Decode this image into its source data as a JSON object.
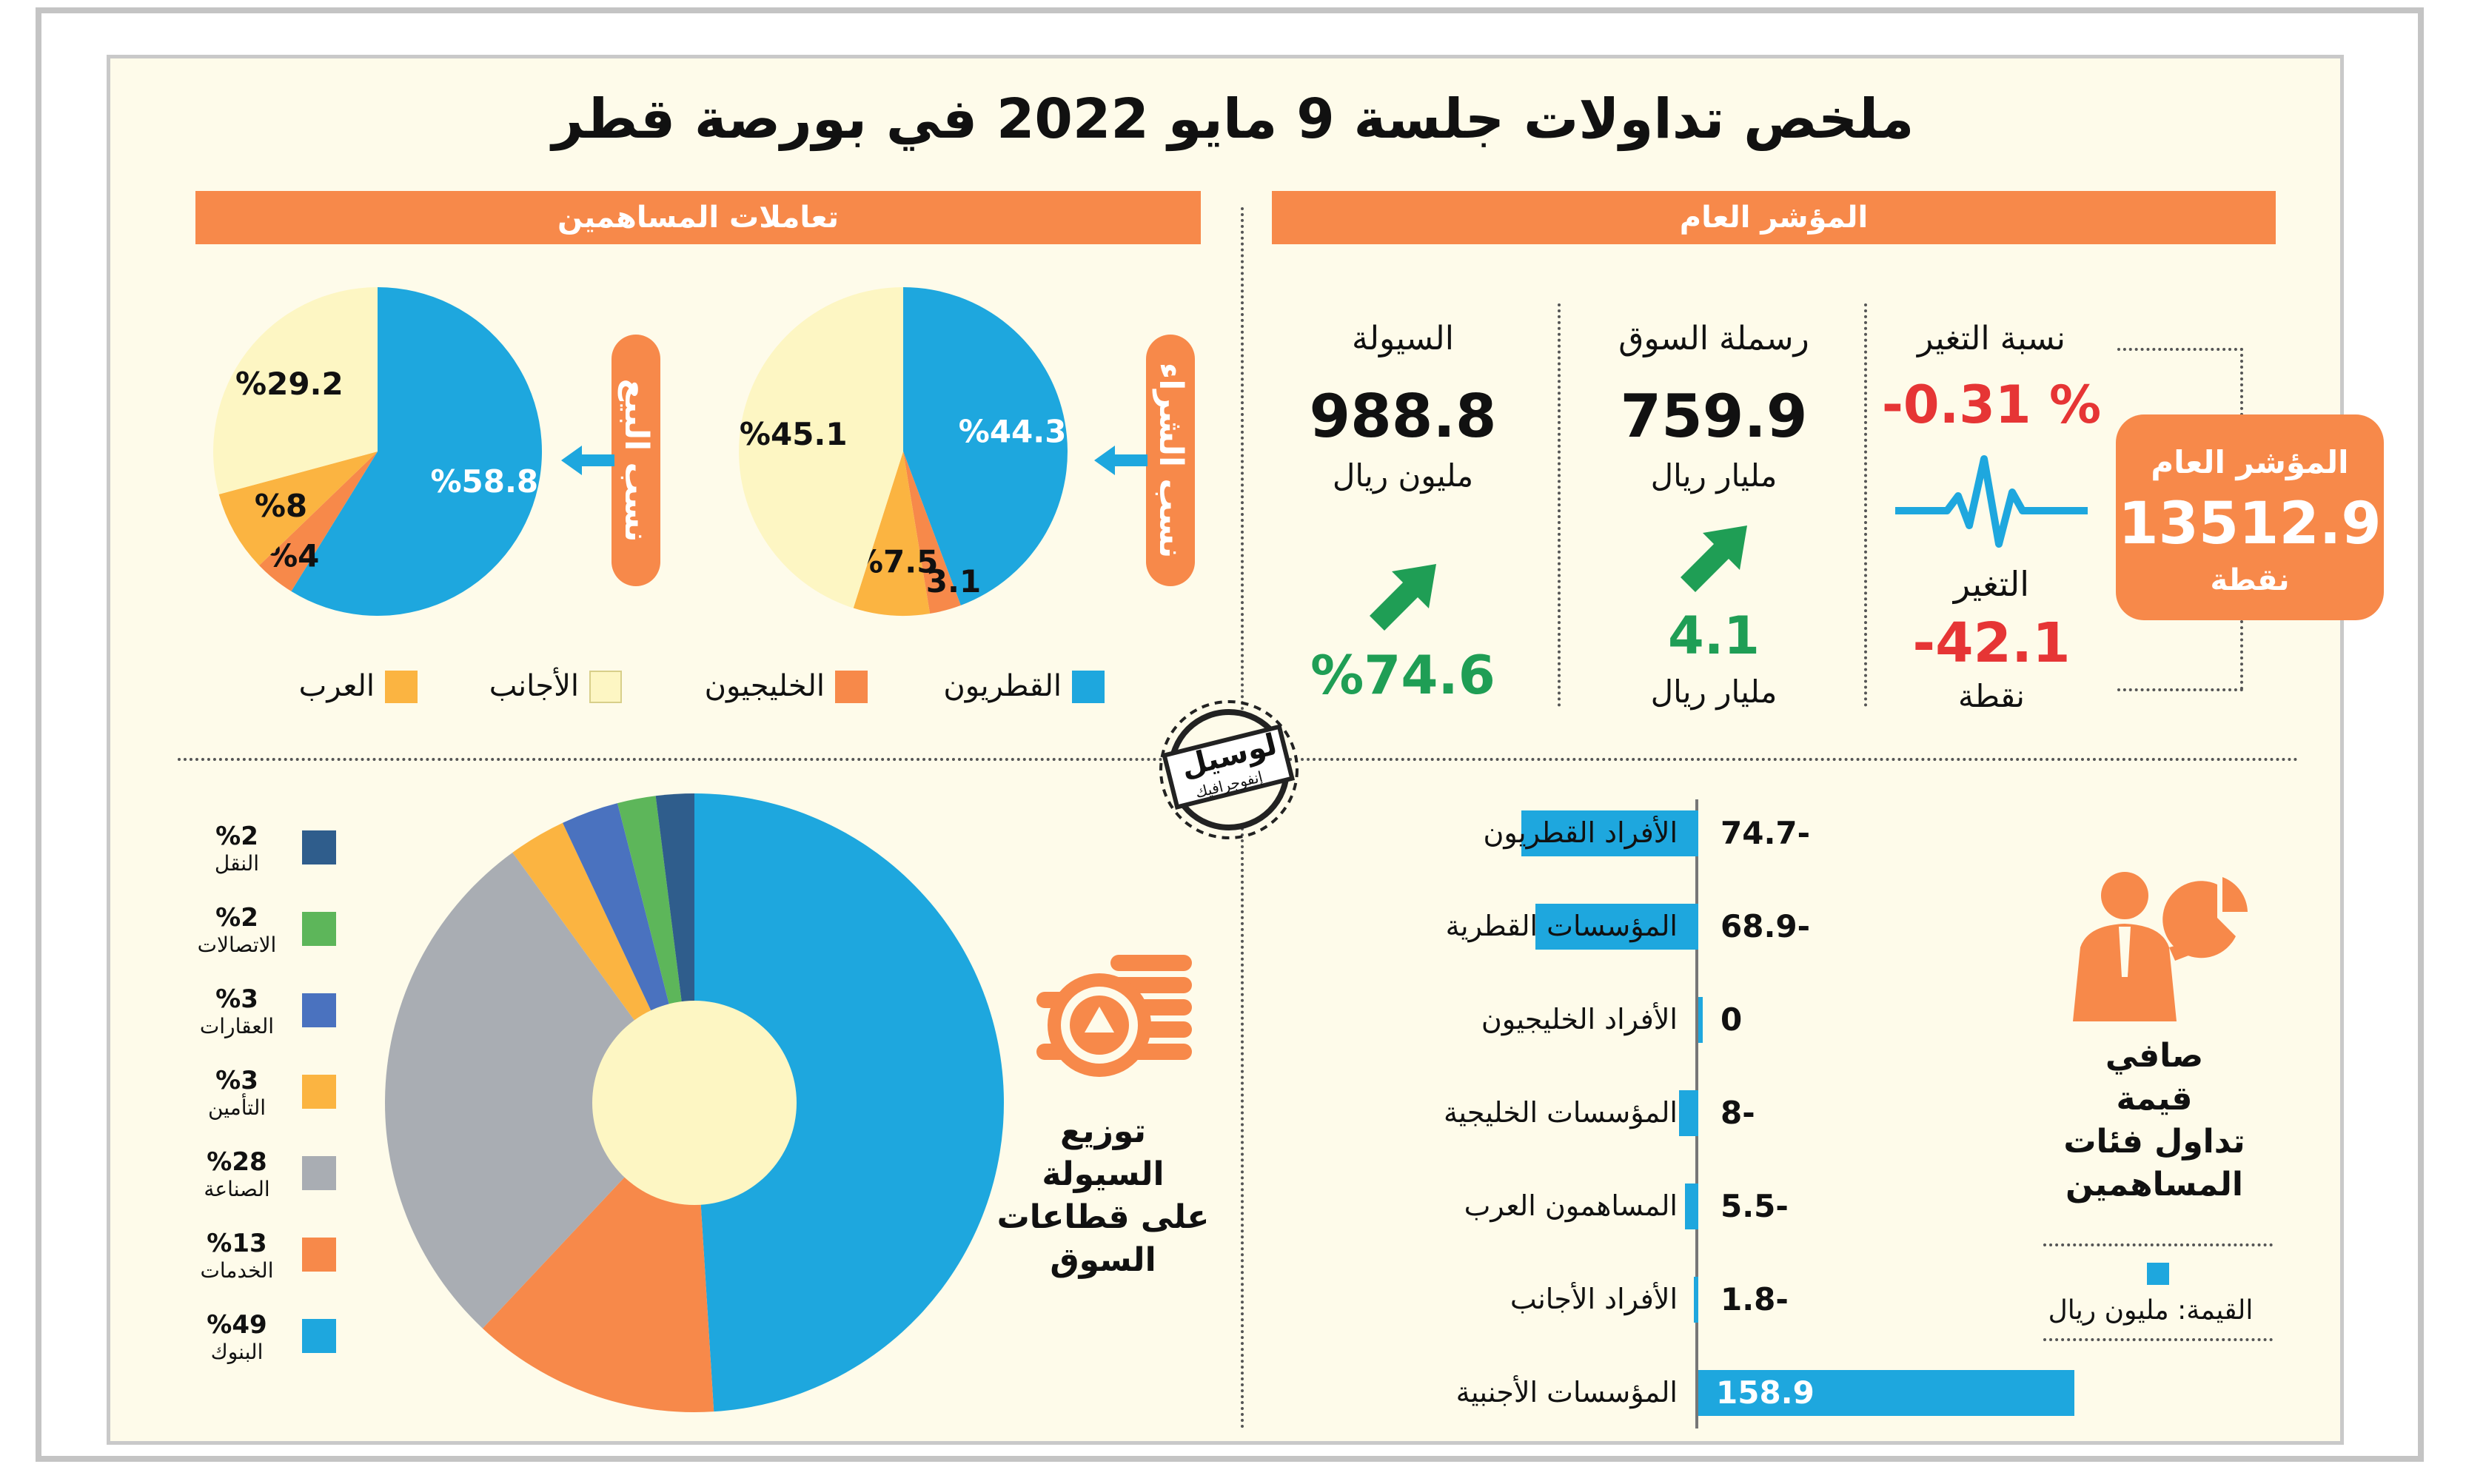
{
  "title": "ملخص تداولات جلسة 9 مايو 2022 في بورصة قطر",
  "sections": {
    "index": "المؤشر العام",
    "shareholders": "تعاملات المساهمين"
  },
  "index_box": {
    "label": "المؤشر العام",
    "value": "13512.9",
    "unit": "نقطة"
  },
  "change": {
    "pct_label": "نسبة التغير",
    "pct_value": "% 0.31-",
    "abs_label": "التغير",
    "abs_value": "42.1-",
    "abs_unit": "نقطة"
  },
  "market_cap": {
    "label": "رسملة السوق",
    "value": "759.9",
    "unit": "مليار ريال",
    "change_value": "4.1",
    "change_unit": "مليار ريال"
  },
  "liquidity": {
    "label": "السيولة",
    "value": "988.8",
    "unit": "مليون ريال",
    "change_value": "%74.6"
  },
  "pill_labels": {
    "buy": "نسب الشراء",
    "sell": "نسب البيع"
  },
  "sector_title": [
    "توزيع",
    "السيولة",
    "على قطاعات",
    "السوق"
  ],
  "net_title": [
    "صافي",
    "قيمة",
    "تداول فئات",
    "المساهمين"
  ],
  "net_unit_note": "القيمة: مليون ريال",
  "logo_text": {
    "main": "لوسيل",
    "sub": "إنفوجرافيك"
  },
  "colors": {
    "qatari": "#1ea7de",
    "gulf": "#f7894a",
    "foreign": "#fdf6c3",
    "arab": "#fbb441",
    "accent": "#f7894a",
    "red": "#e63535",
    "green": "#1f9e55"
  },
  "chart_data": [
    {
      "type": "pie",
      "name": "buy",
      "labels": [
        "القطريون",
        "الخليجيون",
        "العرب",
        "الأجانب"
      ],
      "values": [
        44.3,
        3.1,
        7.5,
        45.1
      ],
      "value_labels": [
        "%44.3",
        "%3.1",
        "%7.5",
        "%45.1"
      ],
      "colors": [
        "#1ea7de",
        "#f7894a",
        "#fbb441",
        "#fdf6c3"
      ]
    },
    {
      "type": "pie",
      "name": "sell",
      "labels": [
        "القطريون",
        "الخليجيون",
        "العرب",
        "الأجانب"
      ],
      "values": [
        58.8,
        4,
        8,
        29.2
      ],
      "value_labels": [
        "%58.8",
        "%4",
        "%8",
        "%29.2"
      ],
      "colors": [
        "#1ea7de",
        "#f7894a",
        "#fbb441",
        "#fdf6c3"
      ]
    },
    {
      "type": "pie",
      "name": "sectors",
      "labels": [
        "البنوك",
        "الخدمات",
        "الصناعة",
        "التأمين",
        "العقارات",
        "الاتصالات",
        "النقل"
      ],
      "values": [
        49,
        13,
        28,
        3,
        3,
        2,
        2
      ],
      "value_labels": [
        "%49",
        "%13",
        "%28",
        "%3",
        "%3",
        "%2",
        "%2"
      ],
      "colors": [
        "#1ea7de",
        "#f7894a",
        "#a9adb3",
        "#fbb441",
        "#4a72bf",
        "#5db65a",
        "#2f5d8c"
      ]
    },
    {
      "type": "bar",
      "name": "net_value",
      "categories": [
        "الأفراد القطريون",
        "المؤسسات القطرية",
        "الأفراد الخليجيون",
        "المؤسسات الخليجية",
        "المساهمون العرب",
        "الأفراد الأجانب",
        "المؤسسات الأجنبية"
      ],
      "values": [
        -74.7,
        -68.9,
        0,
        -8,
        -5.5,
        -1.8,
        158.9
      ],
      "value_labels": [
        "74.7-",
        "68.9-",
        "0",
        "8-",
        "5.5-",
        "1.8-",
        "158.9"
      ]
    }
  ],
  "legend_nationality": [
    "القطريون",
    "الخليجيون",
    "الأجانب",
    "العرب"
  ]
}
